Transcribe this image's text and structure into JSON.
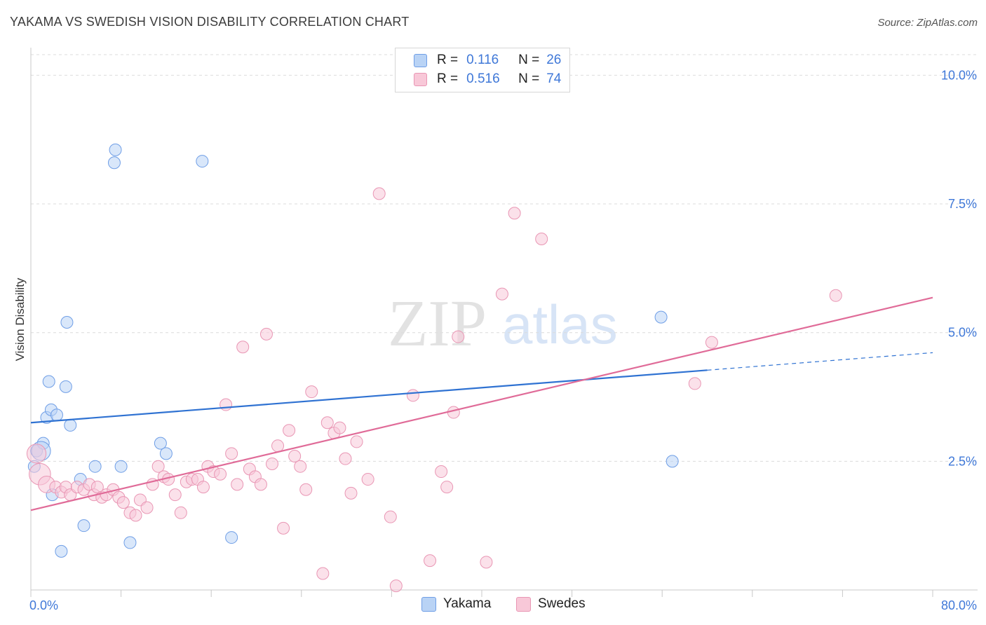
{
  "header": {
    "title": "YAKAMA VS SWEDISH VISION DISABILITY CORRELATION CHART",
    "source": "Source: ZipAtlas.com"
  },
  "legend": {
    "r_label": "R =",
    "n_label": "N =",
    "series": [
      {
        "name": "Yakama",
        "r": "0.116",
        "n": "26",
        "fill": "#b9d3f5",
        "stroke": "#6f9ee6"
      },
      {
        "name": "Swedes",
        "r": "0.516",
        "n": "74",
        "fill": "#f8c8d8",
        "stroke": "#e996b4"
      }
    ]
  },
  "watermark": {
    "zip": "ZIP",
    "atlas": "atlas"
  },
  "chart_data": {
    "type": "scatter",
    "title": "YAKAMA VS SWEDISH VISION DISABILITY CORRELATION CHART",
    "xlabel": "",
    "ylabel": "Vision Disability",
    "xlim": [
      0,
      80
    ],
    "ylim": [
      0,
      10.4
    ],
    "x_tick_labels": [
      "0.0%",
      "80.0%"
    ],
    "y_ticks": [
      2.5,
      5.0,
      7.5,
      10.0
    ],
    "y_tick_labels": [
      "2.5%",
      "5.0%",
      "7.5%",
      "10.0%"
    ],
    "grid": "horizontal dashed",
    "legend_position": "top-center",
    "series": [
      {
        "name": "Yakama",
        "color": "#6f9ee6",
        "fill": "#b9d3f5",
        "trend_color": "#2f72d2",
        "trend": {
          "x0": 0,
          "y0": 3.25,
          "x1": 60,
          "y1": 4.27,
          "dash_to_x": 80,
          "dash_to_y": 4.61
        },
        "points": [
          [
            0.3,
            2.4
          ],
          [
            0.5,
            2.7
          ],
          [
            1.1,
            2.85
          ],
          [
            1.4,
            3.35
          ],
          [
            1.6,
            4.05
          ],
          [
            1.8,
            3.5
          ],
          [
            2.3,
            3.4
          ],
          [
            2.7,
            0.75
          ],
          [
            3.1,
            3.95
          ],
          [
            3.2,
            5.2
          ],
          [
            3.5,
            3.2
          ],
          [
            4.4,
            2.15
          ],
          [
            4.7,
            1.25
          ],
          [
            5.7,
            2.4
          ],
          [
            7.4,
            8.3
          ],
          [
            7.5,
            8.55
          ],
          [
            8.0,
            2.4
          ],
          [
            8.8,
            0.92
          ],
          [
            11.5,
            2.85
          ],
          [
            12.0,
            2.65
          ],
          [
            15.2,
            8.33
          ],
          [
            17.8,
            1.02
          ],
          [
            55.9,
            5.3
          ],
          [
            56.9,
            2.5
          ],
          [
            1.9,
            1.85
          ],
          [
            0.9,
            2.7
          ]
        ],
        "point_size": [
          1,
          1,
          1,
          1,
          1,
          1,
          1,
          1,
          1,
          1,
          1,
          1,
          1,
          1,
          1,
          1,
          1,
          1,
          1,
          1,
          1,
          1,
          1,
          1,
          1,
          1.6
        ]
      },
      {
        "name": "Swedes",
        "color": "#e996b4",
        "fill": "#f8c8d8",
        "trend_color": "#e06b98",
        "trend": {
          "x0": 0,
          "y0": 1.55,
          "x1": 80,
          "y1": 5.68
        },
        "points": [
          [
            0.5,
            2.65
          ],
          [
            0.8,
            2.25
          ],
          [
            1.4,
            2.05
          ],
          [
            2.2,
            2.0
          ],
          [
            2.7,
            1.9
          ],
          [
            3.1,
            2.0
          ],
          [
            3.5,
            1.85
          ],
          [
            4.1,
            2.0
          ],
          [
            4.7,
            1.95
          ],
          [
            5.2,
            2.05
          ],
          [
            5.6,
            1.85
          ],
          [
            5.9,
            2.0
          ],
          [
            6.3,
            1.8
          ],
          [
            6.7,
            1.85
          ],
          [
            7.3,
            1.95
          ],
          [
            7.8,
            1.8
          ],
          [
            8.2,
            1.7
          ],
          [
            8.8,
            1.5
          ],
          [
            9.3,
            1.45
          ],
          [
            9.7,
            1.75
          ],
          [
            10.3,
            1.6
          ],
          [
            10.8,
            2.05
          ],
          [
            11.3,
            2.4
          ],
          [
            11.8,
            2.2
          ],
          [
            12.2,
            2.15
          ],
          [
            12.8,
            1.85
          ],
          [
            13.3,
            1.5
          ],
          [
            13.8,
            2.1
          ],
          [
            14.3,
            2.15
          ],
          [
            14.8,
            2.15
          ],
          [
            15.3,
            2.0
          ],
          [
            15.7,
            2.4
          ],
          [
            16.2,
            2.3
          ],
          [
            16.8,
            2.25
          ],
          [
            17.3,
            3.6
          ],
          [
            17.8,
            2.65
          ],
          [
            18.3,
            2.05
          ],
          [
            18.8,
            4.72
          ],
          [
            19.4,
            2.35
          ],
          [
            19.9,
            2.2
          ],
          [
            20.4,
            2.05
          ],
          [
            20.9,
            4.97
          ],
          [
            21.4,
            2.45
          ],
          [
            21.9,
            2.8
          ],
          [
            22.4,
            1.2
          ],
          [
            22.9,
            3.1
          ],
          [
            23.4,
            2.6
          ],
          [
            23.9,
            2.4
          ],
          [
            24.4,
            1.95
          ],
          [
            24.9,
            3.85
          ],
          [
            25.9,
            0.32
          ],
          [
            26.3,
            3.25
          ],
          [
            26.9,
            3.05
          ],
          [
            27.4,
            3.15
          ],
          [
            27.9,
            2.55
          ],
          [
            28.4,
            1.88
          ],
          [
            28.9,
            2.88
          ],
          [
            29.9,
            2.15
          ],
          [
            30.9,
            7.7
          ],
          [
            31.9,
            1.42
          ],
          [
            32.4,
            0.08
          ],
          [
            33.9,
            3.78
          ],
          [
            35.4,
            0.57
          ],
          [
            36.4,
            2.3
          ],
          [
            36.9,
            2.0
          ],
          [
            37.5,
            3.45
          ],
          [
            37.9,
            4.92
          ],
          [
            40.4,
            0.54
          ],
          [
            41.8,
            5.75
          ],
          [
            42.9,
            7.32
          ],
          [
            45.3,
            6.82
          ],
          [
            58.9,
            4.01
          ],
          [
            60.4,
            4.81
          ],
          [
            71.4,
            5.72
          ]
        ],
        "point_size": [
          1.6,
          1.8,
          1.4,
          1,
          1,
          1,
          1,
          1,
          1,
          1,
          1,
          1,
          1,
          1,
          1,
          1,
          1,
          1,
          1,
          1,
          1,
          1,
          1,
          1,
          1,
          1,
          1,
          1,
          1,
          1,
          1,
          1,
          1,
          1,
          1,
          1,
          1,
          1,
          1,
          1,
          1,
          1,
          1,
          1,
          1,
          1,
          1,
          1,
          1,
          1,
          1,
          1,
          1,
          1,
          1,
          1,
          1,
          1,
          1,
          1,
          1,
          1,
          1,
          1,
          1,
          1,
          1,
          1,
          1,
          1,
          1,
          1,
          1,
          1
        ]
      }
    ]
  }
}
